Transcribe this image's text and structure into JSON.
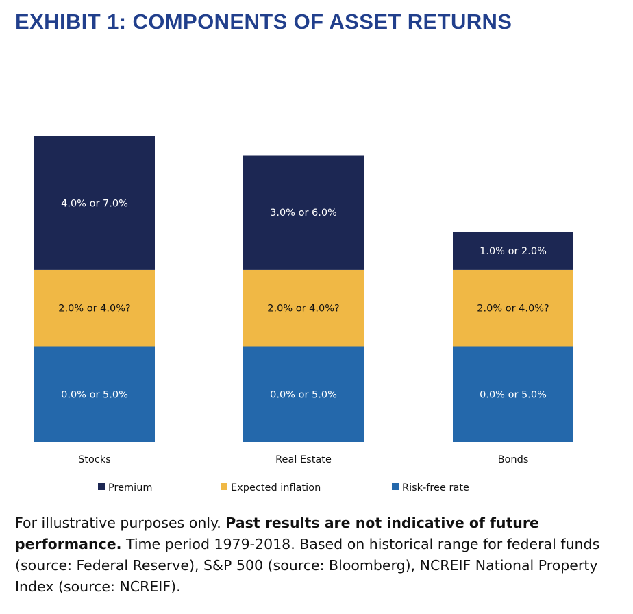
{
  "title": "EXHIBIT 1: COMPONENTS OF ASSET RETURNS",
  "footnote": {
    "lead": "For illustrative purposes only.",
    "bold": "Past results are not indicative of future performance.",
    "rest": "Time period 1979-2018. Based on historical range for federal funds (source: Federal Reserve), S&P 500 (source: Bloomberg), NCREIF National Property Index (source: NCREIF)."
  },
  "colors": {
    "premium": "#1c2753",
    "inflation": "#f0b845",
    "riskfree": "#2468ab",
    "title": "#213f8c"
  },
  "chart_data": {
    "type": "bar",
    "stacked": true,
    "title": "EXHIBIT 1: COMPONENTS OF ASSET RETURNS",
    "categories": [
      "Stocks",
      "Real Estate",
      "Bonds"
    ],
    "series": [
      {
        "name": "Risk-free rate",
        "values": [
          5.0,
          5.0,
          5.0
        ],
        "labels": [
          "0.0% or 5.0%",
          "0.0% or 5.0%",
          "0.0% or 5.0%"
        ]
      },
      {
        "name": "Expected inflation",
        "values": [
          4.0,
          4.0,
          4.0
        ],
        "labels": [
          "2.0% or 4.0%?",
          "2.0% or 4.0%?",
          "2.0% or 4.0%?"
        ]
      },
      {
        "name": "Premium",
        "values": [
          7.0,
          6.0,
          2.0
        ],
        "labels": [
          "4.0% or 7.0%",
          "3.0% or 6.0%",
          "1.0% or 2.0%"
        ]
      }
    ],
    "legend": [
      "Premium",
      "Expected inflation",
      "Risk-free rate"
    ],
    "legend_position": "bottom",
    "axes_visible": false,
    "grid": false
  }
}
